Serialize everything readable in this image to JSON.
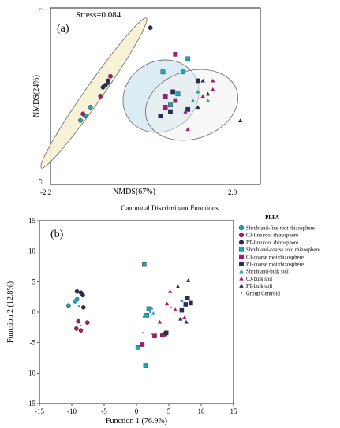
{
  "panel_a": {
    "label": "(a)",
    "stress": "Stress=0.084",
    "xlabel": "NMDS(67%)",
    "ylabel": "NMDS(24%)",
    "xtick_min": "-2.2",
    "xtick_max": "2.0",
    "ytick_min": "-2",
    "ytick_max": "2"
  },
  "panel_b": {
    "heading": "Canonical Discriminant Functions",
    "label": "(b)",
    "xlabel": "Function 1 (76.9%)",
    "ylabel": "Function 2 (12.8%)",
    "legend_title": "PLFA"
  },
  "colors": {
    "teal": "#1aa6b7",
    "magenta": "#b3127d",
    "navy": "#262c5c",
    "ellipse_yellow": "#f7f1d0",
    "ellipse_blue": "#d3e7f2",
    "ellipse_grey": "#f2f2f2"
  },
  "chart_data": [
    {
      "type": "scatter",
      "panel": "a",
      "xlim": [
        -2.2,
        2.0
      ],
      "ylim": [
        -2,
        2
      ],
      "series": [
        {
          "group": "Shrubland-fine root rhizosphere",
          "color": "#1aa6b7",
          "marker": "circle",
          "points": [
            [
              -1.6,
              -0.55
            ],
            [
              -1.5,
              -0.45
            ],
            [
              -1.4,
              -0.25
            ]
          ]
        },
        {
          "group": "CJ-fine root rhizosphere",
          "color": "#b3127d",
          "marker": "circle",
          "points": [
            [
              -1.55,
              -0.4
            ],
            [
              -1.2,
              0.0
            ],
            [
              -1.05,
              0.3
            ],
            [
              -1.0,
              0.45
            ]
          ]
        },
        {
          "group": "PT-fine root rhizosphere",
          "color": "#262c5c",
          "marker": "circle",
          "points": [
            [
              -1.15,
              0.2
            ],
            [
              -1.1,
              0.25
            ],
            [
              -1.05,
              0.35
            ],
            [
              -0.2,
              1.55
            ]
          ]
        },
        {
          "group": "Shrubland-coarse root rhizosphere",
          "color": "#1aa6b7",
          "marker": "square",
          "points": [
            [
              0.05,
              0.55
            ],
            [
              0.35,
              0.05
            ],
            [
              0.55,
              0.85
            ],
            [
              0.2,
              -0.2
            ],
            [
              0.45,
              0.55
            ]
          ]
        },
        {
          "group": "CJ-coarse root rhizosphere",
          "color": "#b3127d",
          "marker": "square",
          "points": [
            [
              0.3,
              0.95
            ],
            [
              0.3,
              -0.1
            ],
            [
              0.1,
              -0.25
            ],
            [
              0.1,
              0.0
            ]
          ]
        },
        {
          "group": "PT-coarse root rhizosphere",
          "color": "#262c5c",
          "marker": "square",
          "points": [
            [
              0.0,
              -0.45
            ],
            [
              0.2,
              -0.35
            ],
            [
              0.25,
              0.1
            ],
            [
              0.75,
              0.35
            ],
            [
              0.55,
              -0.3
            ]
          ]
        },
        {
          "group": "Shrubland-bulk soil",
          "color": "#1aa6b7",
          "marker": "triangle",
          "points": [
            [
              0.75,
              0.1
            ],
            [
              0.65,
              -0.1
            ],
            [
              0.95,
              -0.1
            ]
          ]
        },
        {
          "group": "CJ-bulk soil",
          "color": "#b3127d",
          "marker": "triangle",
          "points": [
            [
              1.05,
              0.15
            ],
            [
              0.85,
              0.0
            ],
            [
              0.5,
              -0.35
            ],
            [
              0.55,
              -0.75
            ],
            [
              1.05,
              0.35
            ]
          ]
        },
        {
          "group": "PT-bulk soil",
          "color": "#262c5c",
          "marker": "triangle",
          "points": [
            [
              0.85,
              0.35
            ],
            [
              0.75,
              -0.25
            ],
            [
              0.95,
              0.05
            ],
            [
              1.6,
              -0.55
            ]
          ]
        }
      ]
    },
    {
      "type": "scatter",
      "panel": "b",
      "xlabel": "Function 1 (76.9%)",
      "ylabel": "Function 2 (12.8%)",
      "xlim": [
        -15,
        15
      ],
      "ylim": [
        -15,
        15
      ],
      "xticks": [
        "-15",
        "-10",
        "-5",
        "0",
        "5",
        "10",
        "15"
      ],
      "yticks": [
        "15",
        "10",
        "5",
        "0",
        "-5",
        "-10",
        "-15"
      ],
      "legend": {
        "title": "PLFA",
        "position": "right",
        "entries": [
          {
            "label": "Shrubland-fine root rhizosphere",
            "color": "#1aa6b7",
            "marker": "circle"
          },
          {
            "label": "CJ-fine root rhizosphere",
            "color": "#b3127d",
            "marker": "circle"
          },
          {
            "label": "PT-fine root rhizosphere",
            "color": "#262c5c",
            "marker": "circle"
          },
          {
            "label": "Shrubland-coarse root rhizosphere",
            "color": "#1aa6b7",
            "marker": "square"
          },
          {
            "label": "CJ-coarse root rhizosphere",
            "color": "#b3127d",
            "marker": "square"
          },
          {
            "label": "PT-coarse root rhizosphere",
            "color": "#262c5c",
            "marker": "square"
          },
          {
            "label": "Shrubland-bulk soil",
            "color": "#1aa6b7",
            "marker": "triangle"
          },
          {
            "label": "CJ-bulk soil",
            "color": "#b3127d",
            "marker": "triangle"
          },
          {
            "label": "PT-bulk soil",
            "color": "#262c5c",
            "marker": "triangle"
          },
          {
            "label": "Group Centroid",
            "color": "#3a7bd5",
            "marker": "dot"
          }
        ]
      },
      "series": [
        {
          "group": "Shrubland-fine root rhizosphere",
          "color": "#1aa6b7",
          "marker": "circle",
          "points": [
            [
              -10.5,
              1.0
            ],
            [
              -9.2,
              2.1
            ],
            [
              -9.5,
              1.7
            ]
          ]
        },
        {
          "group": "CJ-fine root rhizosphere",
          "color": "#b3127d",
          "marker": "circle",
          "points": [
            [
              -9.0,
              -1.5
            ],
            [
              -9.3,
              -2.7
            ],
            [
              -8.6,
              -3.0
            ],
            [
              -7.6,
              -1.7
            ]
          ]
        },
        {
          "group": "PT-fine root rhizosphere",
          "color": "#262c5c",
          "marker": "circle",
          "points": [
            [
              -9.2,
              3.4
            ],
            [
              -8.6,
              3.2
            ],
            [
              -8.3,
              2.8
            ],
            [
              -8.2,
              0.8
            ]
          ]
        },
        {
          "group": "Shrubland-coarse root rhizosphere",
          "color": "#1aa6b7",
          "marker": "square",
          "points": [
            [
              1.2,
              7.8
            ],
            [
              0.2,
              -5.8
            ],
            [
              1.4,
              -8.8
            ],
            [
              1.9,
              0.6
            ],
            [
              1.6,
              -0.5
            ]
          ]
        },
        {
          "group": "CJ-coarse root rhizosphere",
          "color": "#b3127d",
          "marker": "square",
          "points": [
            [
              0.9,
              -5.3
            ],
            [
              2.8,
              -3.9
            ],
            [
              4.0,
              -3.8
            ],
            [
              4.4,
              -3.6
            ]
          ]
        },
        {
          "group": "PT-coarse root rhizosphere",
          "color": "#262c5c",
          "marker": "square",
          "points": [
            [
              7.0,
              0.3
            ],
            [
              7.6,
              1.3
            ],
            [
              7.9,
              2.3
            ],
            [
              8.4,
              1.5
            ],
            [
              4.6,
              -3.4
            ]
          ]
        },
        {
          "group": "Shrubland-bulk soil",
          "color": "#1aa6b7",
          "marker": "triangle",
          "points": [
            [
              2.3,
              0.7
            ],
            [
              2.6,
              -0.2
            ],
            [
              1.2,
              -0.6
            ]
          ]
        },
        {
          "group": "CJ-bulk soil",
          "color": "#b3127d",
          "marker": "triangle",
          "points": [
            [
              5.2,
              3.4
            ],
            [
              4.7,
              1.4
            ],
            [
              6.0,
              0.4
            ],
            [
              7.4,
              -0.9
            ],
            [
              3.6,
              -1.6
            ]
          ]
        },
        {
          "group": "PT-bulk soil",
          "color": "#262c5c",
          "marker": "triangle",
          "points": [
            [
              6.4,
              4.2
            ],
            [
              8.0,
              5.2
            ],
            [
              6.8,
              -1.1
            ],
            [
              7.7,
              -1.6
            ]
          ]
        },
        {
          "group": "Group Centroid",
          "color": "#3a7bd5",
          "marker": "dot",
          "points": [
            [
              -9.0,
              2.3
            ],
            [
              -8.6,
              -2.2
            ],
            [
              -8.9,
              1.0
            ],
            [
              1.0,
              -3.4
            ],
            [
              2.3,
              -3.6
            ],
            [
              6.9,
              1.9
            ],
            [
              2.1,
              0.0
            ],
            [
              5.4,
              0.8
            ],
            [
              7.1,
              1.8
            ]
          ]
        }
      ]
    }
  ]
}
